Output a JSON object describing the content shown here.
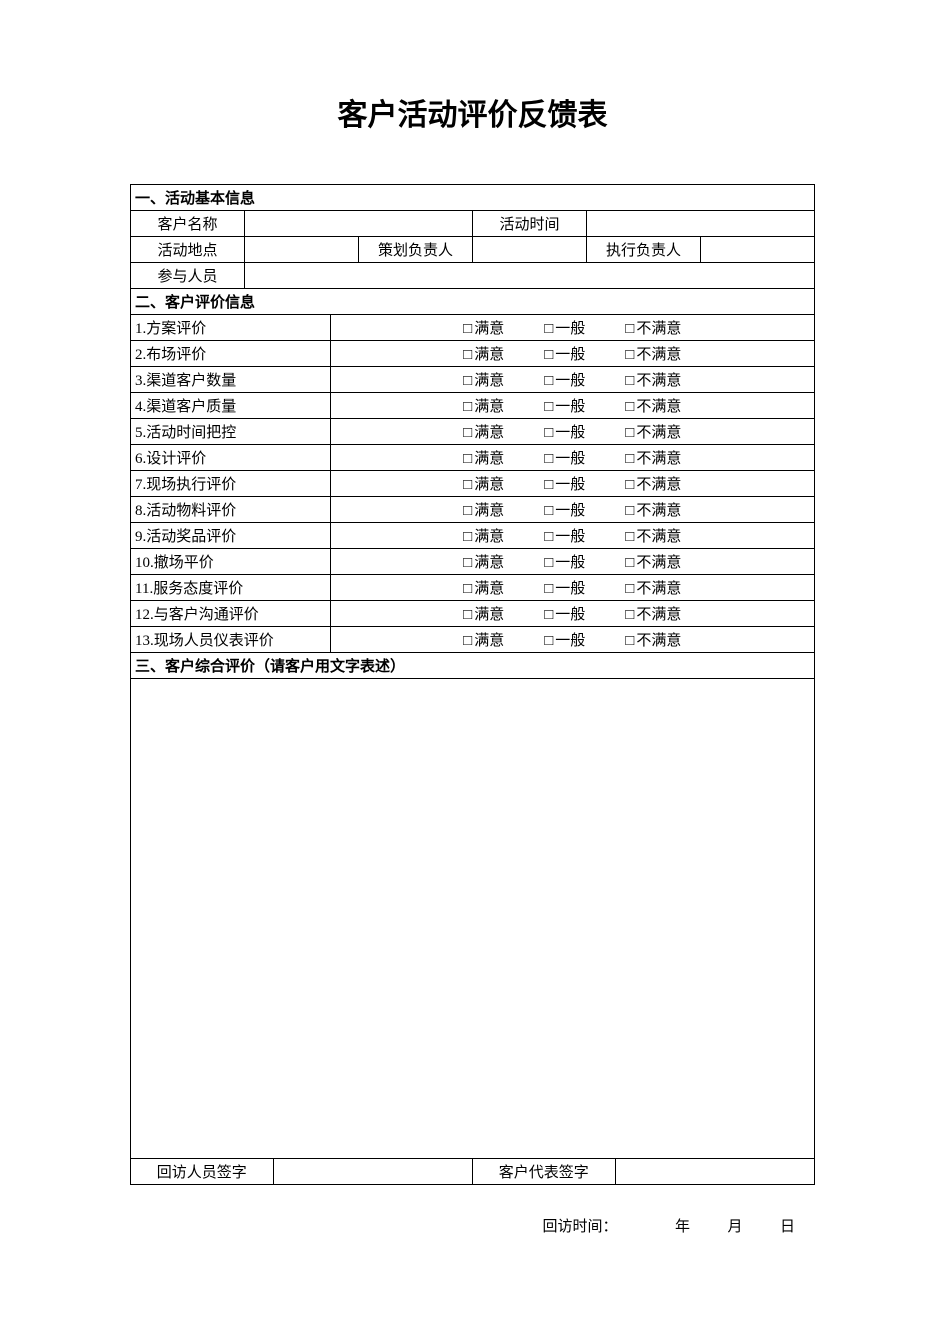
{
  "title": "客户活动评价反馈表",
  "section1": {
    "header": "一、活动基本信息"
  },
  "info": {
    "customer_name_label": "客户名称",
    "activity_time_label": "活动时间",
    "activity_place_label": "活动地点",
    "plan_leader_label": "策划负责人",
    "exec_leader_label": "执行负责人",
    "participants_label": "参与人员"
  },
  "section2": {
    "header": "二、客户评价信息"
  },
  "options": {
    "satisfied": "满意",
    "average": "一般",
    "unsatisfied": "不满意",
    "checkbox": "□"
  },
  "eval_items": [
    "1.方案评价",
    "2.布场评价",
    "3.渠道客户数量",
    "4.渠道客户质量",
    "5.活动时间把控",
    "6.设计评价",
    "7.现场执行评价",
    "8.活动物料评价",
    "9.活动奖品评价",
    "10.撤场平价",
    "11.服务态度评价",
    "12.与客户沟通评价",
    "13.现场人员仪表评价"
  ],
  "section3": {
    "header": "三、客户综合评价（请客户用文字表述）"
  },
  "sign": {
    "interviewer_label": "回访人员签字",
    "customer_rep_label": "客户代表签字"
  },
  "footer": {
    "visit_time_label": "回访时间：",
    "year": "年",
    "month": "月",
    "day": "日"
  },
  "layout": {
    "col_count": 24
  }
}
